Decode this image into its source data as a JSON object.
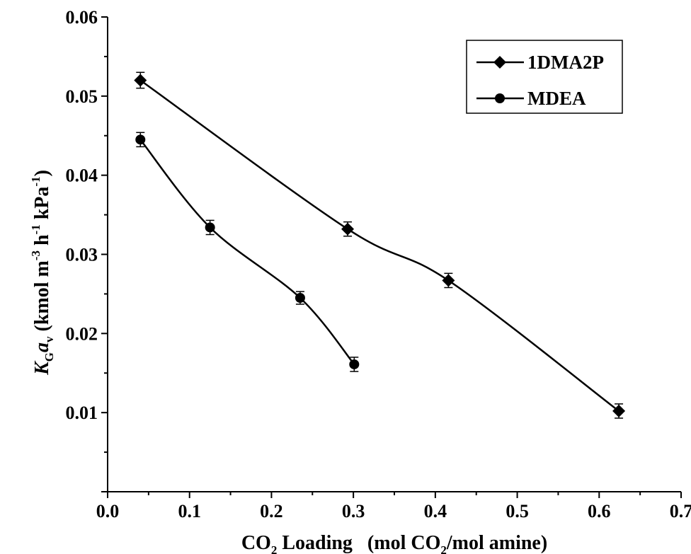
{
  "chart_data": {
    "type": "line",
    "x_axis": {
      "label_parts": {
        "a": "CO",
        "a_sub": "2",
        "b": " Loading   (mol CO",
        "b_sub": "2",
        "c": "/mol amine)"
      },
      "range": [
        0.0,
        0.7
      ],
      "ticks": [
        "0.0",
        "0.1",
        "0.2",
        "0.3",
        "0.4",
        "0.5",
        "0.6",
        "0.7"
      ]
    },
    "y_axis": {
      "label_parts": {
        "k": "K",
        "k_sub": "G",
        "a": "a",
        "a_sub": "v",
        "u1": " (kmol m",
        "u1_sup": "-3",
        "u2": " h",
        "u2_sup": "-1",
        "u3": " kPa",
        "u3_sup": "-1",
        "u4": ")"
      },
      "range": [
        0.0,
        0.06
      ],
      "ticks": [
        "0.01",
        "0.02",
        "0.03",
        "0.04",
        "0.05",
        "0.06"
      ]
    },
    "legend": {
      "placement": "top-right"
    },
    "series": [
      {
        "name": "1DMA2P",
        "marker": "diamond",
        "x": [
          0.04,
          0.293,
          0.416,
          0.624
        ],
        "y": [
          0.052,
          0.0332,
          0.0267,
          0.0102
        ],
        "err": [
          0.001,
          0.0009,
          0.0009,
          0.0009
        ]
      },
      {
        "name": "MDEA",
        "marker": "circle",
        "x": [
          0.04,
          0.125,
          0.235,
          0.301
        ],
        "y": [
          0.0445,
          0.0334,
          0.0245,
          0.0161
        ],
        "err": [
          0.0009,
          0.0009,
          0.0008,
          0.0009
        ]
      }
    ]
  }
}
